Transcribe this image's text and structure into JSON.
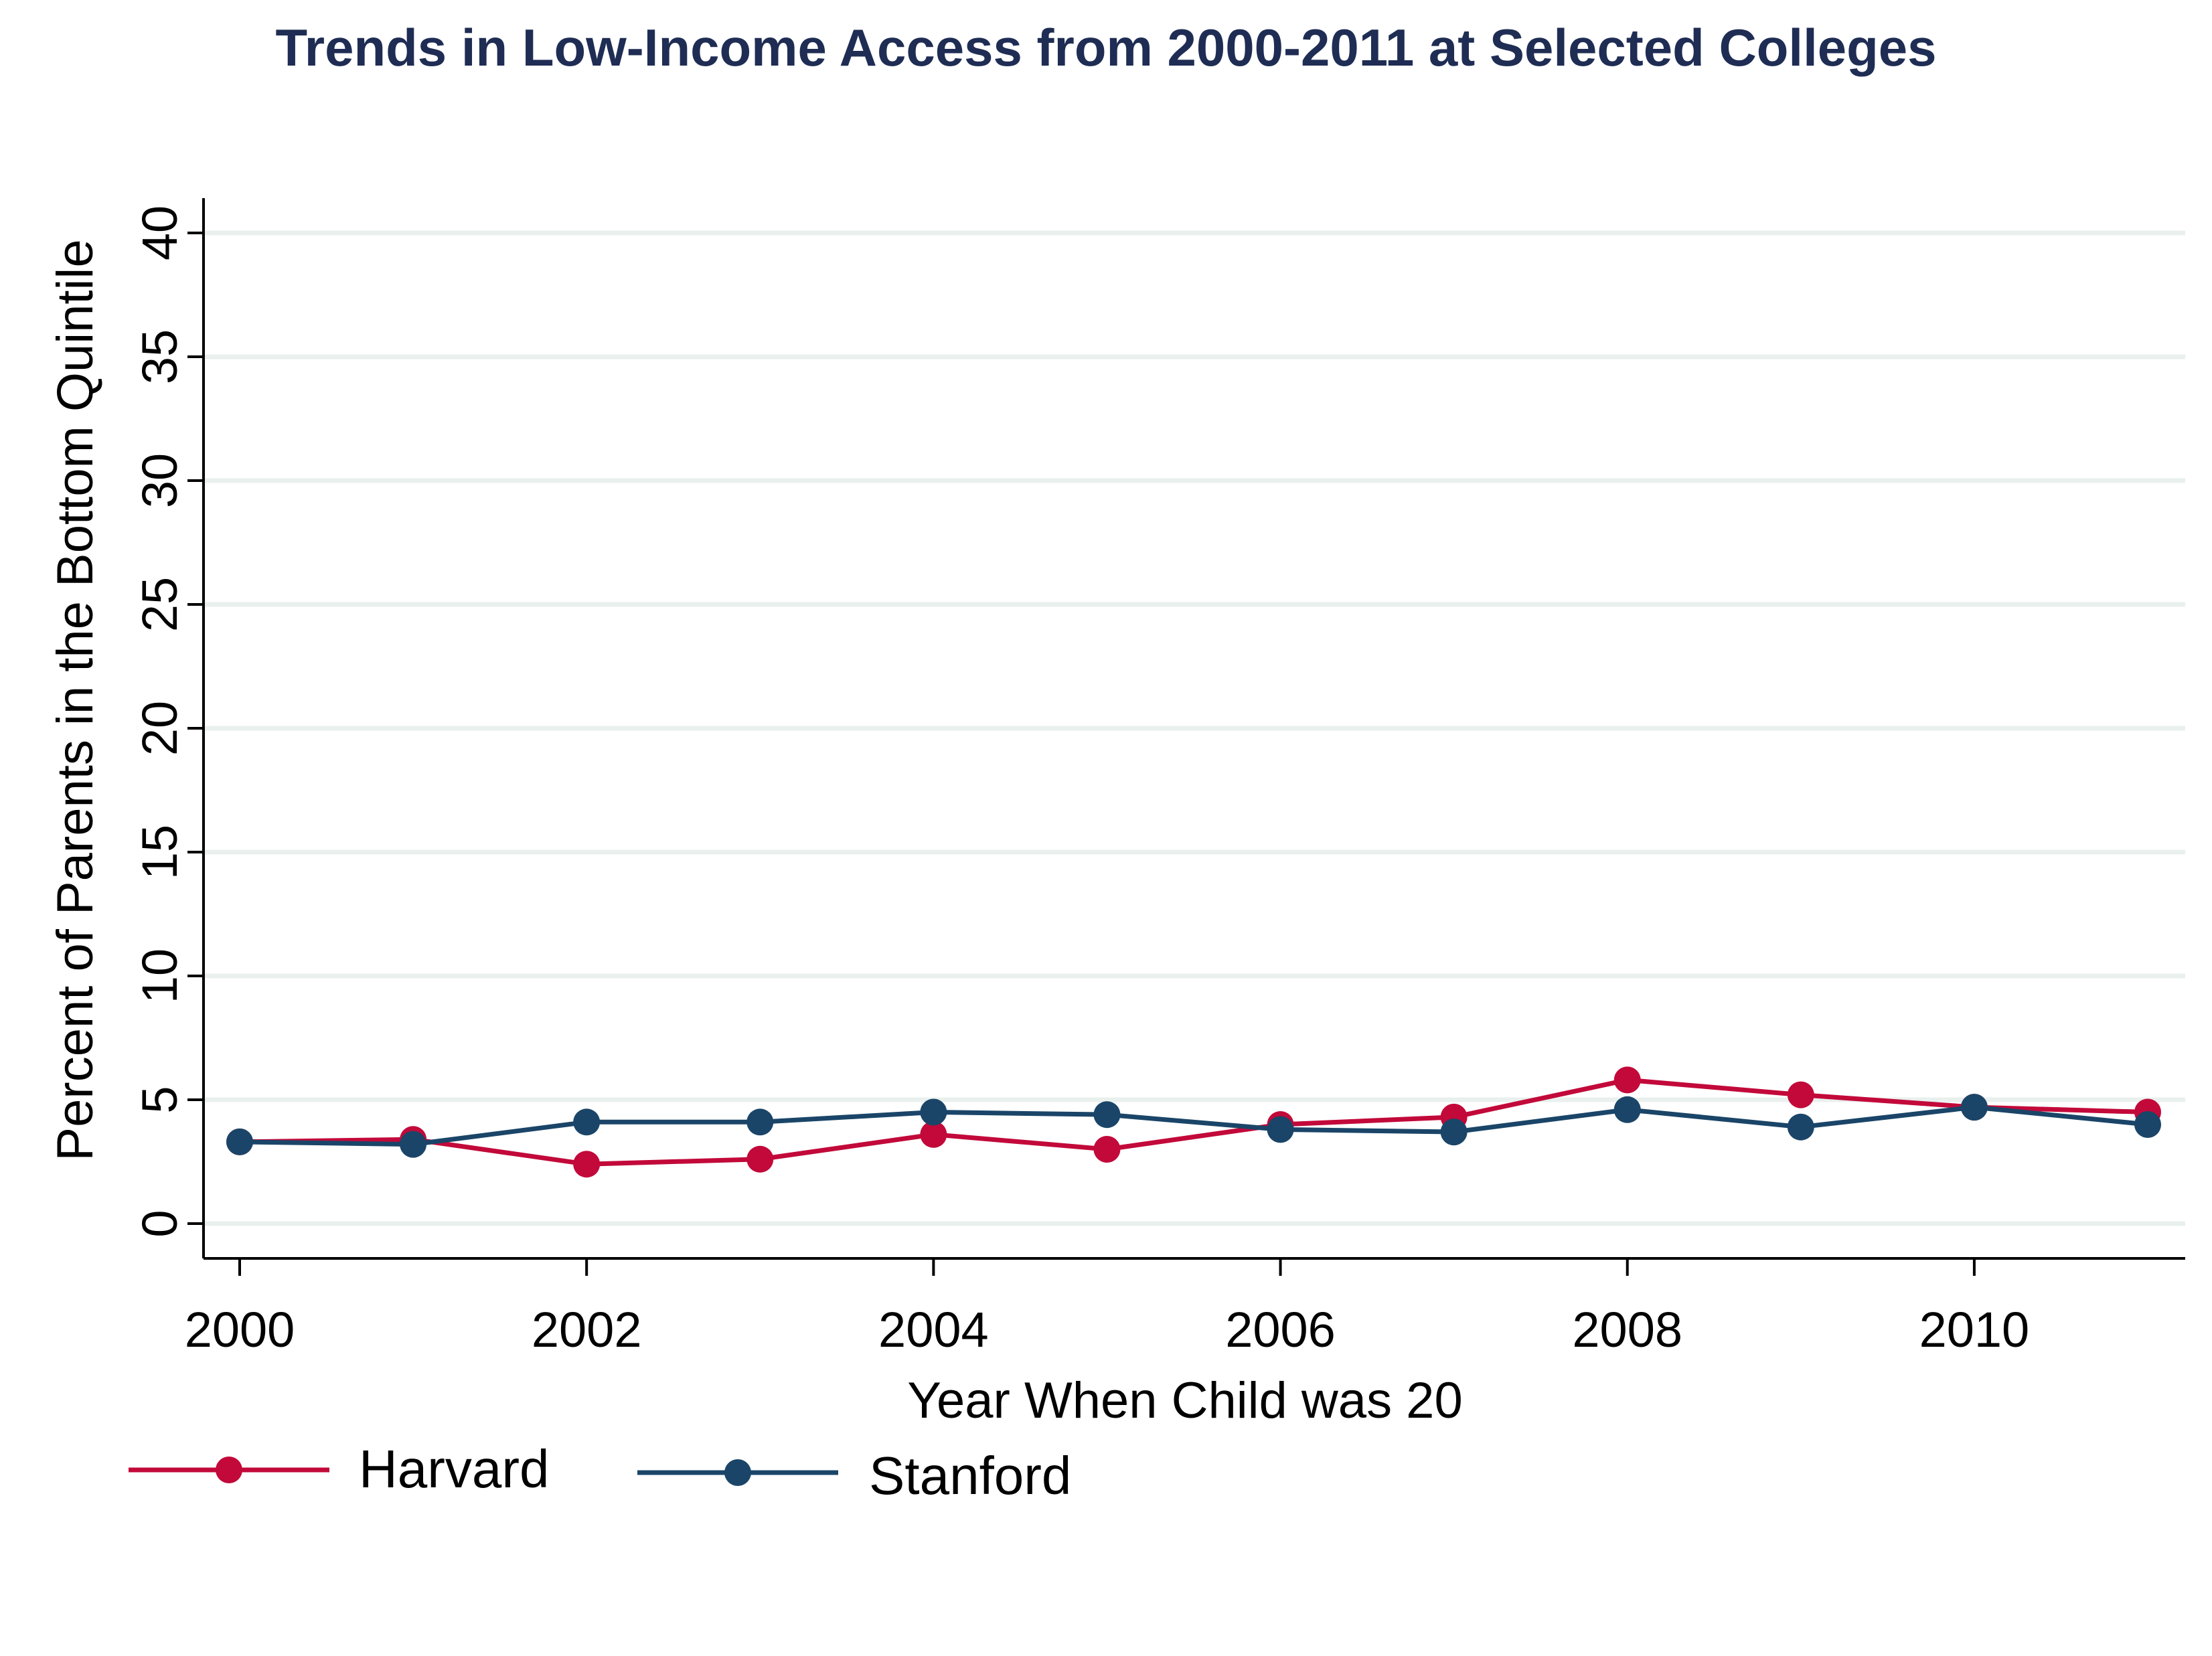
{
  "chart_data": {
    "type": "line",
    "title": "Trends in Low-Income Access from 2000-2011 at Selected Colleges",
    "xlabel": "Year When Child was 20",
    "ylabel": "Percent of Parents in the Bottom Quintile",
    "x": [
      2000,
      2001,
      2002,
      2003,
      2004,
      2005,
      2006,
      2007,
      2008,
      2009,
      2010,
      2011
    ],
    "x_ticks": [
      "2000",
      "2002",
      "2004",
      "2006",
      "2008",
      "2010"
    ],
    "y_ticks": [
      "0",
      "5",
      "10",
      "15",
      "20",
      "25",
      "30",
      "35",
      "40"
    ],
    "xlim": [
      2000,
      2011
    ],
    "ylim": [
      0,
      40
    ],
    "grid": true,
    "legend_position": "bottom-left",
    "series": [
      {
        "name": "Harvard",
        "color": "#c2093a",
        "values": [
          3.3,
          3.4,
          2.4,
          2.6,
          3.6,
          3.0,
          4.0,
          4.3,
          5.8,
          5.2,
          4.7,
          4.5
        ]
      },
      {
        "name": "Stanford",
        "color": "#1a4568",
        "values": [
          3.3,
          3.2,
          4.1,
          4.1,
          4.5,
          4.4,
          3.8,
          3.7,
          4.6,
          3.9,
          4.7,
          4.0
        ]
      }
    ],
    "title_color": "#1f2d54",
    "grid_color": "#e9f0ee"
  }
}
